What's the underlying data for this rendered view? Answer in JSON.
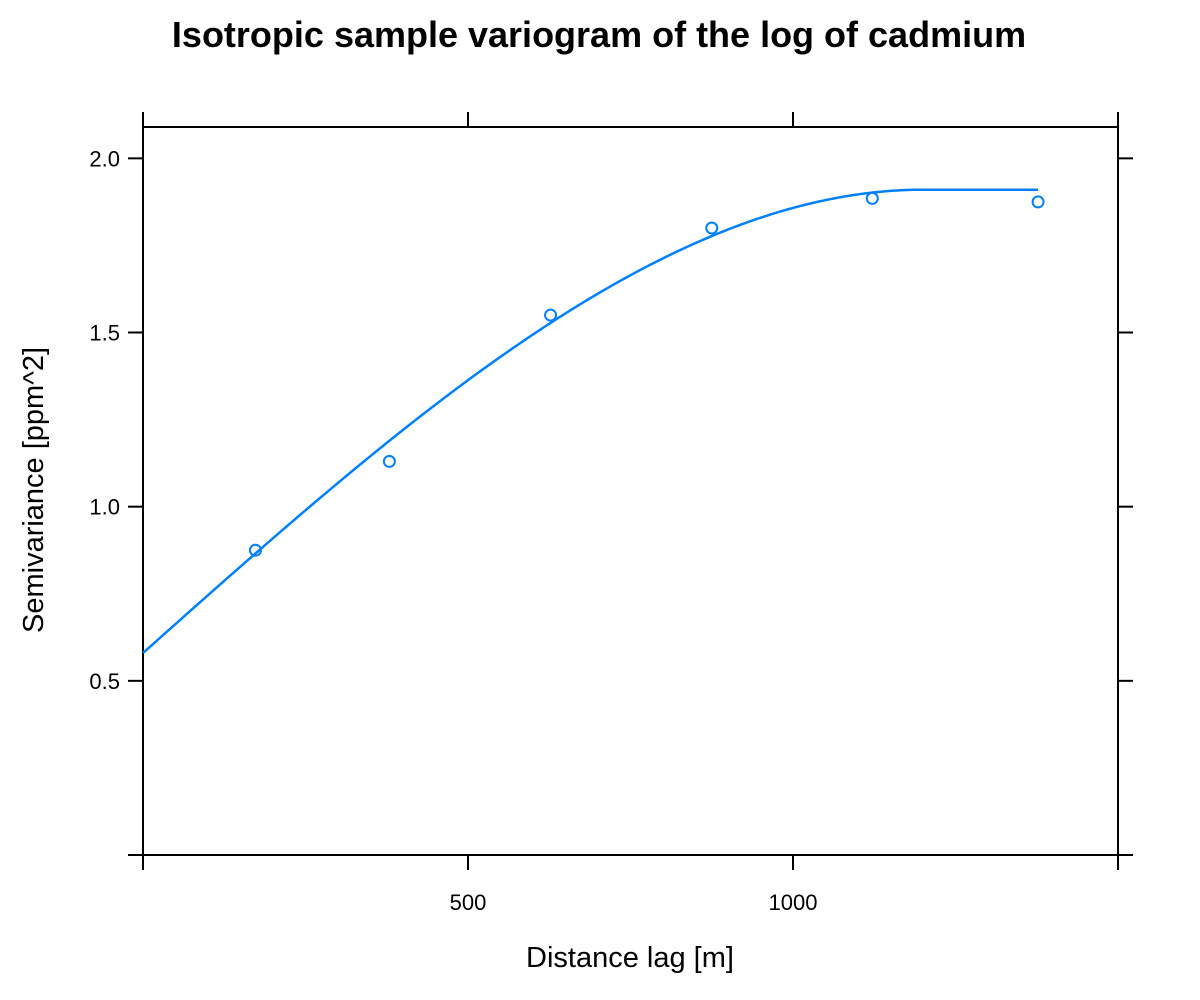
{
  "chart_data": {
    "type": "scatter",
    "title": "Isotropic sample variogram of the log of cadmium",
    "xlabel": "Distance lag [m]",
    "ylabel": "Semivariance [ppm^2]",
    "xlim": [
      0,
      1500
    ],
    "ylim": [
      0,
      2.09
    ],
    "x_ticks": [
      500,
      1000
    ],
    "x_tick_labels": [
      "500",
      "1000"
    ],
    "x_top_ticks": [
      0,
      500,
      1000,
      1500
    ],
    "y_ticks": [
      0.5,
      1.0,
      1.5,
      2.0
    ],
    "y_tick_labels": [
      "0.5",
      "1.0",
      "1.5",
      "2.0"
    ],
    "grid": false,
    "color": "#0080ff",
    "points": [
      {
        "x": 173,
        "y": 0.875
      },
      {
        "x": 379,
        "y": 1.13
      },
      {
        "x": 627,
        "y": 1.55
      },
      {
        "x": 875,
        "y": 1.8
      },
      {
        "x": 1122,
        "y": 1.885
      },
      {
        "x": 1377,
        "y": 1.875
      }
    ],
    "model": {
      "type": "spherical",
      "nugget": 0.58,
      "psill": 1.33,
      "range": 1200,
      "x_max": 1377
    }
  }
}
